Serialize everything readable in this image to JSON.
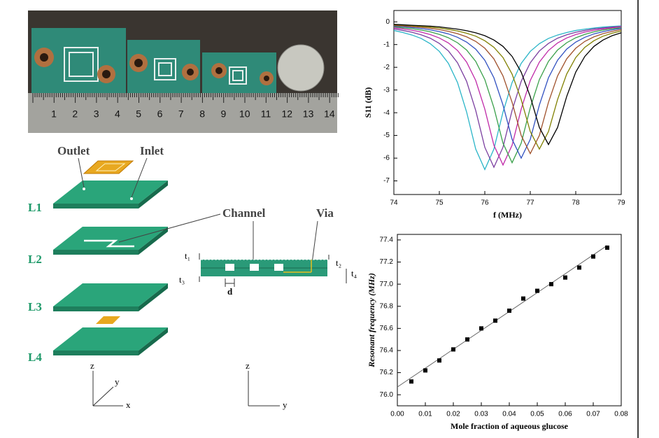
{
  "chart_data": [
    {
      "type": "line",
      "xlabel": "f (MHz)",
      "ylabel": "S11 (dB)",
      "x": [
        74,
        74.2,
        74.4,
        74.6,
        74.8,
        75,
        75.2,
        75.4,
        75.6,
        75.8,
        76,
        76.2,
        76.4,
        76.6,
        76.8,
        77,
        77.2,
        77.4,
        77.6,
        77.8,
        78,
        78.2,
        78.4,
        78.6,
        78.8,
        79
      ],
      "series": [
        {
          "color": "#2ab5c8",
          "values": [
            -0.38,
            -0.47,
            -0.58,
            -0.73,
            -0.96,
            -1.3,
            -1.83,
            -2.67,
            -3.97,
            -5.6,
            -6.5,
            -5.6,
            -3.97,
            -2.67,
            -1.83,
            -1.3,
            -0.96,
            -0.73,
            -0.58,
            -0.47,
            -0.38,
            -0.32,
            -0.27,
            -0.23,
            -0.2,
            -0.18
          ]
        },
        {
          "color": "#7b3fa0",
          "values": [
            -0.31,
            -0.38,
            -0.46,
            -0.57,
            -0.72,
            -0.95,
            -1.28,
            -1.8,
            -2.62,
            -3.9,
            -5.52,
            -6.4,
            -5.52,
            -3.9,
            -2.62,
            -1.8,
            -1.28,
            -0.95,
            -0.72,
            -0.57,
            -0.46,
            -0.38,
            -0.31,
            -0.27,
            -0.23,
            -0.2
          ]
        },
        {
          "color": "#c02aa8",
          "values": [
            -0.26,
            -0.31,
            -0.37,
            -0.45,
            -0.56,
            -0.71,
            -0.93,
            -1.26,
            -1.77,
            -2.58,
            -3.84,
            -5.43,
            -6.3,
            -5.43,
            -3.84,
            -2.58,
            -1.77,
            -1.26,
            -0.93,
            -0.71,
            -0.56,
            -0.45,
            -0.37,
            -0.31,
            -0.26,
            -0.22
          ]
        },
        {
          "color": "#3aa04a",
          "values": [
            -0.22,
            -0.26,
            -0.3,
            -0.36,
            -0.44,
            -0.55,
            -0.7,
            -0.92,
            -1.24,
            -1.74,
            -2.54,
            -3.78,
            -5.34,
            -6.2,
            -5.34,
            -3.78,
            -2.54,
            -1.74,
            -1.24,
            -0.92,
            -0.7,
            -0.55,
            -0.44,
            -0.36,
            -0.3,
            -0.26
          ]
        },
        {
          "color": "#3050c0",
          "values": [
            -0.19,
            -0.21,
            -0.25,
            -0.29,
            -0.35,
            -0.43,
            -0.53,
            -0.68,
            -0.89,
            -1.2,
            -1.69,
            -2.46,
            -3.66,
            -5.17,
            -6.0,
            -5.17,
            -3.66,
            -2.46,
            -1.69,
            -1.2,
            -0.89,
            -0.68,
            -0.53,
            -0.43,
            -0.35,
            -0.29
          ]
        },
        {
          "color": "#a0522d",
          "values": [
            -0.16,
            -0.18,
            -0.21,
            -0.24,
            -0.28,
            -0.34,
            -0.42,
            -0.52,
            -0.66,
            -0.86,
            -1.16,
            -1.63,
            -2.38,
            -3.54,
            -5.0,
            -5.8,
            -5.0,
            -3.54,
            -2.38,
            -1.63,
            -1.16,
            -0.86,
            -0.66,
            -0.52,
            -0.42,
            -0.34
          ]
        },
        {
          "color": "#808000",
          "values": [
            -0.13,
            -0.15,
            -0.17,
            -0.2,
            -0.23,
            -0.27,
            -0.33,
            -0.4,
            -0.5,
            -0.63,
            -0.83,
            -1.12,
            -1.57,
            -2.3,
            -3.42,
            -4.83,
            -5.6,
            -4.83,
            -3.42,
            -2.3,
            -1.57,
            -1.12,
            -0.83,
            -0.63,
            -0.5,
            -0.4
          ]
        },
        {
          "color": "#000000",
          "values": [
            -0.11,
            -0.13,
            -0.15,
            -0.17,
            -0.19,
            -0.22,
            -0.27,
            -0.32,
            -0.39,
            -0.48,
            -0.61,
            -0.8,
            -1.08,
            -1.52,
            -2.21,
            -3.29,
            -4.65,
            -5.4,
            -4.65,
            -3.29,
            -2.21,
            -1.52,
            -1.08,
            -0.8,
            -0.61,
            -0.48
          ]
        }
      ],
      "xlim": [
        74,
        79
      ],
      "xticks": [
        74,
        75,
        76,
        77,
        78,
        79
      ],
      "ylim": [
        -7.6,
        0.5
      ],
      "yticks": [
        0,
        -1,
        -2,
        -3,
        -4,
        -5,
        -6,
        -7
      ]
    },
    {
      "type": "scatter",
      "xlabel": "Mole fraction of aqueous glucose",
      "ylabel": "Resonant frequency (MHz)",
      "x": [
        0.005,
        0.01,
        0.015,
        0.02,
        0.025,
        0.03,
        0.035,
        0.04,
        0.045,
        0.05,
        0.055,
        0.06,
        0.065,
        0.07,
        0.075
      ],
      "values": [
        76.12,
        76.22,
        76.31,
        76.41,
        76.5,
        76.6,
        76.67,
        76.76,
        76.87,
        76.94,
        77.0,
        77.06,
        77.15,
        77.25,
        77.33
      ],
      "color": "#000000",
      "fit": {
        "x": [
          0,
          0.075
        ],
        "values": [
          76.07,
          77.35
        ],
        "color": "#666666"
      },
      "xlim": [
        0,
        0.08
      ],
      "xticks": [
        {
          "value": 0,
          "label": "0.00"
        },
        0.01,
        0.02,
        0.03,
        0.04,
        0.05,
        0.06,
        0.07,
        0.08
      ],
      "ylim": [
        75.9,
        77.45
      ],
      "yticks": [
        {
          "value": 76,
          "label": "76.0"
        },
        76.2,
        76.4,
        76.6,
        76.8,
        {
          "value": 77,
          "label": "77.0"
        },
        77.2,
        77.4
      ]
    }
  ],
  "photo": {
    "ruler_labels": [
      "1",
      "2",
      "3",
      "4",
      "5",
      "6",
      "7",
      "8",
      "9",
      "10",
      "11",
      "12",
      "13",
      "14"
    ]
  },
  "diagram": {
    "layers": [
      "L1",
      "L2",
      "L3",
      "L4"
    ],
    "outlet": "Outlet",
    "inlet": "Inlet",
    "channel": "Channel",
    "via": "Via",
    "dims": [
      "t₁",
      "t₂",
      "t₃",
      "t₄",
      "d"
    ],
    "axes_left": [
      "z",
      "y",
      "x"
    ],
    "axes_right": [
      "z",
      "y"
    ]
  }
}
